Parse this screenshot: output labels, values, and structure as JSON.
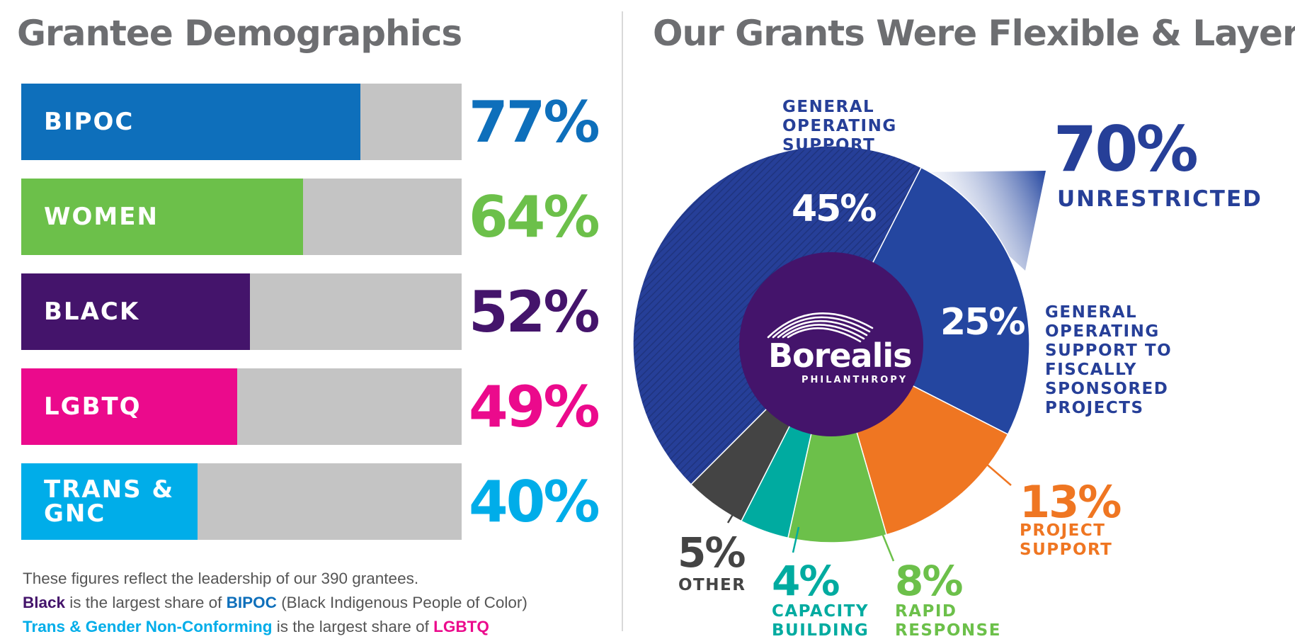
{
  "left_title": "Grantee Demographics",
  "right_title": "Our Grants Were Flexible & Layered",
  "footnote": {
    "line1": "These figures reflect the leadership of our 390 grantees.",
    "line2_a": "Black",
    "line2_b": " is the largest share of ",
    "line2_c": "BIPOC",
    "line2_d": " (Black Indigenous People of Color)",
    "line3_a": "Trans & Gender Non-Conforming",
    "line3_b": " is the largest share of ",
    "line3_c": "LGBTQ"
  },
  "logo": {
    "name": "Borealis",
    "sub": "PHILANTHROPY"
  },
  "unrestricted": {
    "value": "70%",
    "label": "UNRESTRICTED"
  },
  "colors": {
    "title": "#6d6e71",
    "track": "#c4c4c4",
    "navy": "#263f98",
    "purple": "#44146b"
  },
  "chart_data": [
    {
      "type": "bar",
      "orientation": "horizontal",
      "categories": [
        "BIPOC",
        "WOMEN",
        "BLACK",
        "LGBTQ",
        "TRANS &\nGNC"
      ],
      "values": [
        77,
        64,
        52,
        49,
        40
      ],
      "value_labels": [
        "77%",
        "64%",
        "52%",
        "49%",
        "40%"
      ],
      "colors": [
        "#0e6fbb",
        "#6cc04a",
        "#44146b",
        "#eb0a8c",
        "#00ade9"
      ],
      "xlim": [
        0,
        100
      ],
      "title": "Grantee Demographics"
    },
    {
      "type": "pie",
      "donut": true,
      "title": "Our Grants Were Flexible & Layered",
      "slices": [
        {
          "label": "GENERAL\nOPERATING\nSUPPORT",
          "value": 45,
          "value_label": "45%",
          "color": "#263f98",
          "hatched": true
        },
        {
          "label": "GENERAL\nOPERATING\nSUPPORT TO\nFISCALLY\nSPONSORED\nPROJECTS",
          "value": 25,
          "value_label": "25%",
          "color": "#2446a0"
        },
        {
          "label": "PROJECT\nSUPPORT",
          "value": 13,
          "value_label": "13%",
          "color": "#ef7622"
        },
        {
          "label": "RAPID\nRESPONSE",
          "value": 8,
          "value_label": "8%",
          "color": "#6cc04a"
        },
        {
          "label": "CAPACITY\nBUILDING",
          "value": 4,
          "value_label": "4%",
          "color": "#00aba0"
        },
        {
          "label": "OTHER",
          "value": 5,
          "value_label": "5%",
          "color": "#444444"
        }
      ]
    }
  ]
}
